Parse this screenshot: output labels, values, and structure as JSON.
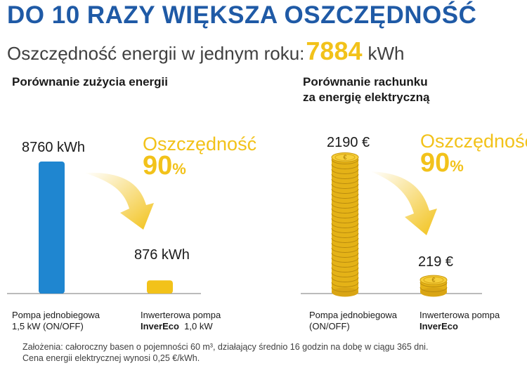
{
  "title": "DO 10 RAZY WIĘKSZA OSZCZĘDNOŚĆ",
  "subtitle": {
    "prefix": "Oszczędność energii w jednym roku:",
    "value": "7884",
    "unit": "kWh"
  },
  "colors": {
    "blue": "#1f86d0",
    "gold": "#f2c21a",
    "title_blue": "#1f5aa6"
  },
  "chart_data": [
    {
      "type": "bar",
      "title": "Porównanie zużycia energii",
      "categories": [
        "Pompa jednobiegowa 1,5 kW (ON/OFF)",
        "Inwerterowa pompa InverEco 1,0 kW"
      ],
      "values": [
        8760,
        876
      ],
      "value_labels": [
        "8760 kWh",
        "876 kWh"
      ],
      "unit": "kWh",
      "colors": [
        "#1f86d0",
        "#f2c21a"
      ],
      "savings_label": "Oszczędność",
      "savings_value": "90",
      "savings_unit": "%"
    },
    {
      "type": "bar",
      "title": "Porównanie rachunku za energię elektryczną",
      "categories": [
        "Pompa jednobiegowa (ON/OFF)",
        "Inwerterowa pompa InverEco"
      ],
      "values": [
        2190,
        219
      ],
      "value_labels": [
        "2190 €",
        "219 €"
      ],
      "unit": "€",
      "style": "coin-stacks",
      "savings_label": "Oszczędność",
      "savings_value": "90",
      "savings_unit": "%"
    }
  ],
  "left": {
    "heading": "Porównanie zużycia energii",
    "cat1": {
      "line1": "Pompa jednobiegowa",
      "line2": "1,5 kW (ON/OFF)"
    },
    "cat2": {
      "line1": "Inwerterowa pompa",
      "brand": "InverEco",
      "power": "1,0 kW"
    }
  },
  "right": {
    "heading_line1": "Porównanie rachunku",
    "heading_line2": "za energię elektryczną",
    "cat1": {
      "line1": "Pompa jednobiegowa",
      "line2": "(ON/OFF)"
    },
    "cat2": {
      "line1": "Inwerterowa pompa",
      "brand": "InverEco"
    },
    "coin_symbol": "€"
  },
  "footnote": {
    "line1": "Założenia: całoroczny basen o pojemności 60 m³, działający średnio 16 godzin na dobę w ciągu 365 dni.",
    "line2": "Cena energii elektrycznej wynosi 0,25 €/kWh."
  }
}
